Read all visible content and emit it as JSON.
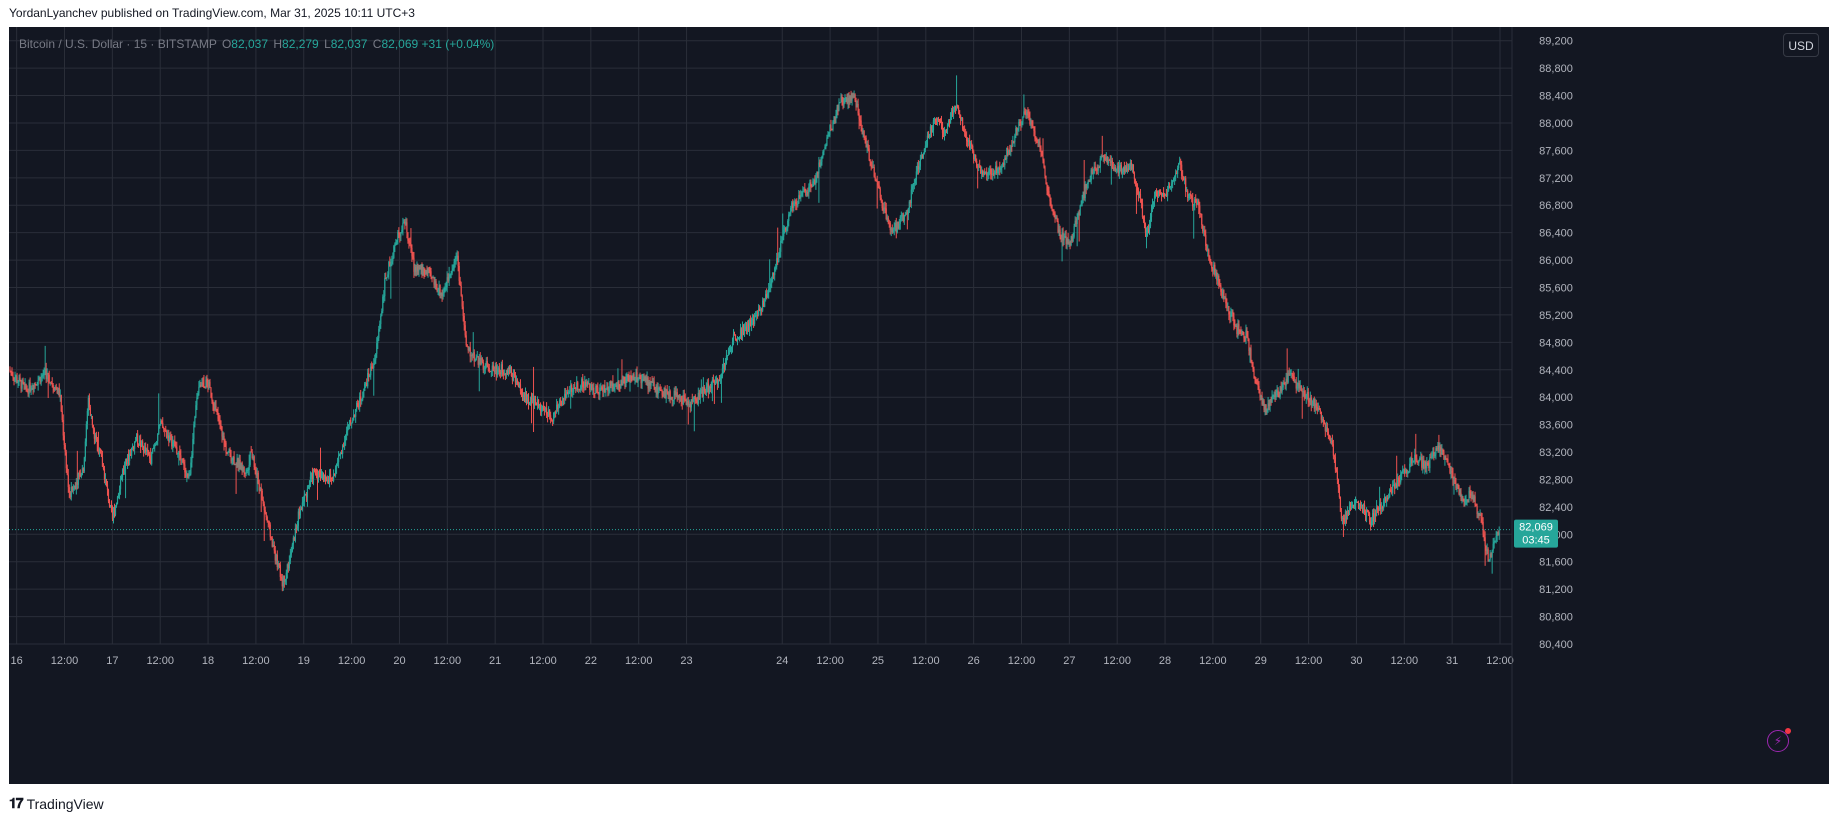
{
  "header": {
    "published": "YordanLyanchev published on TradingView.com, Mar 31, 2025 10:11 UTC+3"
  },
  "legend": {
    "symbol": "Bitcoin / U.S. Dollar · 15 · BITSTAMP",
    "o_label": "O",
    "o": "82,037",
    "h_label": "H",
    "h": "82,279",
    "l_label": "L",
    "l": "82,037",
    "c_label": "C",
    "c": "82,069",
    "change": "+31 (+0.04%)"
  },
  "toolbar": {
    "currency": "USD"
  },
  "footer": {
    "brand": "TradingView",
    "logo_icon": "tradingview-logo-icon"
  },
  "icons": {
    "alert": "lightning-icon"
  },
  "colors": {
    "background": "#131722",
    "grid": "#2a2e39",
    "text": "#b2b5be",
    "up": "#26a69a",
    "down": "#ef5350",
    "price_tag": "#26a69a"
  },
  "chart_data": {
    "type": "candlestick",
    "title": "",
    "xlabel": "",
    "ylabel": "",
    "ylim": [
      80400,
      89400
    ],
    "y_ticks": [
      "89,200",
      "88,800",
      "88,400",
      "88,000",
      "87,600",
      "87,200",
      "86,800",
      "86,400",
      "86,000",
      "85,600",
      "85,200",
      "84,800",
      "84,400",
      "84,000",
      "83,600",
      "83,200",
      "82,800",
      "82,400",
      "82,000",
      "81,600",
      "81,200",
      "80,800",
      "80,400"
    ],
    "y_tick_values": [
      89200,
      88800,
      88400,
      88000,
      87600,
      87200,
      86800,
      86400,
      86000,
      85600,
      85200,
      84800,
      84400,
      84000,
      83600,
      83200,
      82800,
      82400,
      82000,
      81600,
      81200,
      80800,
      80400
    ],
    "x_ticks": [
      {
        "label": "16",
        "pos": 0.0
      },
      {
        "label": "12:00",
        "pos": 0.5
      },
      {
        "label": "17",
        "pos": 1.0
      },
      {
        "label": "12:00",
        "pos": 1.5
      },
      {
        "label": "18",
        "pos": 2.0
      },
      {
        "label": "12:00",
        "pos": 2.5
      },
      {
        "label": "19",
        "pos": 3.0
      },
      {
        "label": "12:00",
        "pos": 3.5
      },
      {
        "label": "20",
        "pos": 4.0
      },
      {
        "label": "12:00",
        "pos": 4.5
      },
      {
        "label": "21",
        "pos": 5.0
      },
      {
        "label": "12:00",
        "pos": 5.5
      },
      {
        "label": "22",
        "pos": 6.0
      },
      {
        "label": "12:00",
        "pos": 6.5
      },
      {
        "label": "23",
        "pos": 7.0
      },
      {
        "label": "24",
        "pos": 8.0
      },
      {
        "label": "12:00",
        "pos": 8.5
      },
      {
        "label": "25",
        "pos": 9.0
      },
      {
        "label": "12:00",
        "pos": 9.5
      },
      {
        "label": "26",
        "pos": 10.0
      },
      {
        "label": "12:00",
        "pos": 10.5
      },
      {
        "label": "27",
        "pos": 11.0
      },
      {
        "label": "12:00",
        "pos": 11.5
      },
      {
        "label": "28",
        "pos": 12.0
      },
      {
        "label": "12:00",
        "pos": 12.5
      },
      {
        "label": "29",
        "pos": 13.0
      },
      {
        "label": "12:00",
        "pos": 13.5
      },
      {
        "label": "30",
        "pos": 14.0
      },
      {
        "label": "12:00",
        "pos": 14.5
      },
      {
        "label": "31",
        "pos": 15.0
      },
      {
        "label": "12:00",
        "pos": 15.5
      }
    ],
    "x_range": [
      -0.08,
      15.5
    ],
    "price_path": [
      [
        -0.08,
        84400
      ],
      [
        0.1,
        84100
      ],
      [
        0.3,
        84350
      ],
      [
        0.45,
        84050
      ],
      [
        0.55,
        82550
      ],
      [
        0.7,
        83000
      ],
      [
        0.75,
        84000
      ],
      [
        0.8,
        83500
      ],
      [
        0.9,
        83000
      ],
      [
        1.0,
        82200
      ],
      [
        1.1,
        82900
      ],
      [
        1.25,
        83400
      ],
      [
        1.4,
        83100
      ],
      [
        1.5,
        83600
      ],
      [
        1.65,
        83300
      ],
      [
        1.8,
        82800
      ],
      [
        1.9,
        84200
      ],
      [
        2.0,
        84200
      ],
      [
        2.1,
        83700
      ],
      [
        2.2,
        83200
      ],
      [
        2.4,
        82900
      ],
      [
        2.45,
        83200
      ],
      [
        2.6,
        82300
      ],
      [
        2.7,
        81700
      ],
      [
        2.78,
        81300
      ],
      [
        2.85,
        81600
      ],
      [
        2.95,
        82300
      ],
      [
        3.1,
        82900
      ],
      [
        3.3,
        82800
      ],
      [
        3.45,
        83500
      ],
      [
        3.6,
        84000
      ],
      [
        3.75,
        84600
      ],
      [
        3.85,
        85700
      ],
      [
        3.95,
        86200
      ],
      [
        4.05,
        86600
      ],
      [
        4.15,
        85900
      ],
      [
        4.3,
        85800
      ],
      [
        4.45,
        85500
      ],
      [
        4.6,
        86100
      ],
      [
        4.7,
        84700
      ],
      [
        4.85,
        84500
      ],
      [
        5.0,
        84400
      ],
      [
        5.15,
        84400
      ],
      [
        5.3,
        84000
      ],
      [
        5.45,
        83900
      ],
      [
        5.6,
        83700
      ],
      [
        5.75,
        84100
      ],
      [
        5.9,
        84200
      ],
      [
        6.1,
        84100
      ],
      [
        6.3,
        84200
      ],
      [
        6.5,
        84300
      ],
      [
        6.7,
        84100
      ],
      [
        6.9,
        84000
      ],
      [
        7.05,
        83900
      ],
      [
        7.2,
        84100
      ],
      [
        7.35,
        84300
      ],
      [
        7.5,
        84900
      ],
      [
        7.7,
        85100
      ],
      [
        7.85,
        85500
      ],
      [
        8.0,
        86300
      ],
      [
        8.1,
        86800
      ],
      [
        8.25,
        87000
      ],
      [
        8.35,
        87200
      ],
      [
        8.45,
        87700
      ],
      [
        8.6,
        88300
      ],
      [
        8.75,
        88400
      ],
      [
        8.85,
        87800
      ],
      [
        8.95,
        87300
      ],
      [
        9.05,
        86800
      ],
      [
        9.15,
        86400
      ],
      [
        9.3,
        86700
      ],
      [
        9.45,
        87500
      ],
      [
        9.6,
        88100
      ],
      [
        9.7,
        87800
      ],
      [
        9.8,
        88300
      ],
      [
        9.95,
        87700
      ],
      [
        10.1,
        87200
      ],
      [
        10.3,
        87400
      ],
      [
        10.45,
        87900
      ],
      [
        10.55,
        88200
      ],
      [
        10.7,
        87600
      ],
      [
        10.8,
        86800
      ],
      [
        10.9,
        86400
      ],
      [
        11.0,
        86200
      ],
      [
        11.1,
        86700
      ],
      [
        11.2,
        87200
      ],
      [
        11.35,
        87500
      ],
      [
        11.5,
        87300
      ],
      [
        11.65,
        87400
      ],
      [
        11.75,
        86800
      ],
      [
        11.8,
        86300
      ],
      [
        11.9,
        87000
      ],
      [
        12.05,
        87000
      ],
      [
        12.15,
        87400
      ],
      [
        12.25,
        86900
      ],
      [
        12.35,
        86800
      ],
      [
        12.45,
        86100
      ],
      [
        12.6,
        85500
      ],
      [
        12.75,
        85000
      ],
      [
        12.85,
        84900
      ],
      [
        12.95,
        84200
      ],
      [
        13.05,
        83800
      ],
      [
        13.15,
        84000
      ],
      [
        13.3,
        84300
      ],
      [
        13.45,
        84100
      ],
      [
        13.6,
        83800
      ],
      [
        13.75,
        83300
      ],
      [
        13.85,
        82200
      ],
      [
        13.95,
        82400
      ],
      [
        14.05,
        82400
      ],
      [
        14.15,
        82200
      ],
      [
        14.3,
        82500
      ],
      [
        14.45,
        82800
      ],
      [
        14.6,
        83100
      ],
      [
        14.75,
        83000
      ],
      [
        14.85,
        83300
      ],
      [
        15.0,
        82900
      ],
      [
        15.1,
        82500
      ],
      [
        15.2,
        82600
      ],
      [
        15.3,
        82200
      ],
      [
        15.38,
        81600
      ],
      [
        15.45,
        81900
      ],
      [
        15.5,
        82069
      ]
    ],
    "last_price": 82069,
    "last_price_label": "82,069",
    "countdown_label": "03:45"
  }
}
